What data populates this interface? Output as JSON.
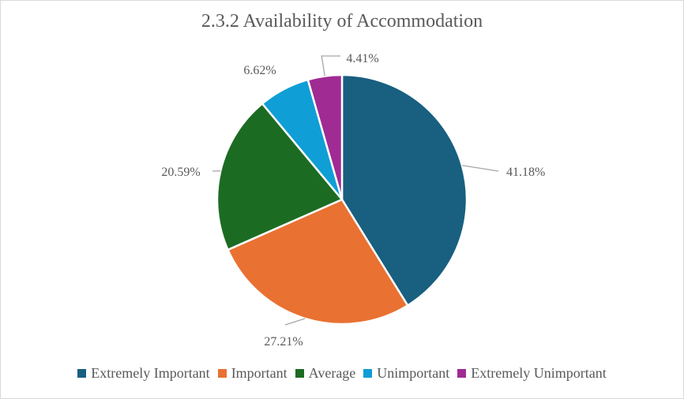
{
  "chart_data": {
    "type": "pie",
    "title": "2.3.2 Availability of Accommodation",
    "categories": [
      "Extremely Important",
      "Important",
      "Average",
      "Unimportant",
      "Extremely Unimportant"
    ],
    "values": [
      41.18,
      27.21,
      20.59,
      6.62,
      4.41
    ],
    "labels": [
      "41.18%",
      "27.21%",
      "20.59%",
      "6.62%",
      "4.41%"
    ],
    "colors": [
      "#185F80",
      "#E97132",
      "#1C6B23",
      "#0F9ED5",
      "#A02B93"
    ],
    "legend": "bottom"
  }
}
